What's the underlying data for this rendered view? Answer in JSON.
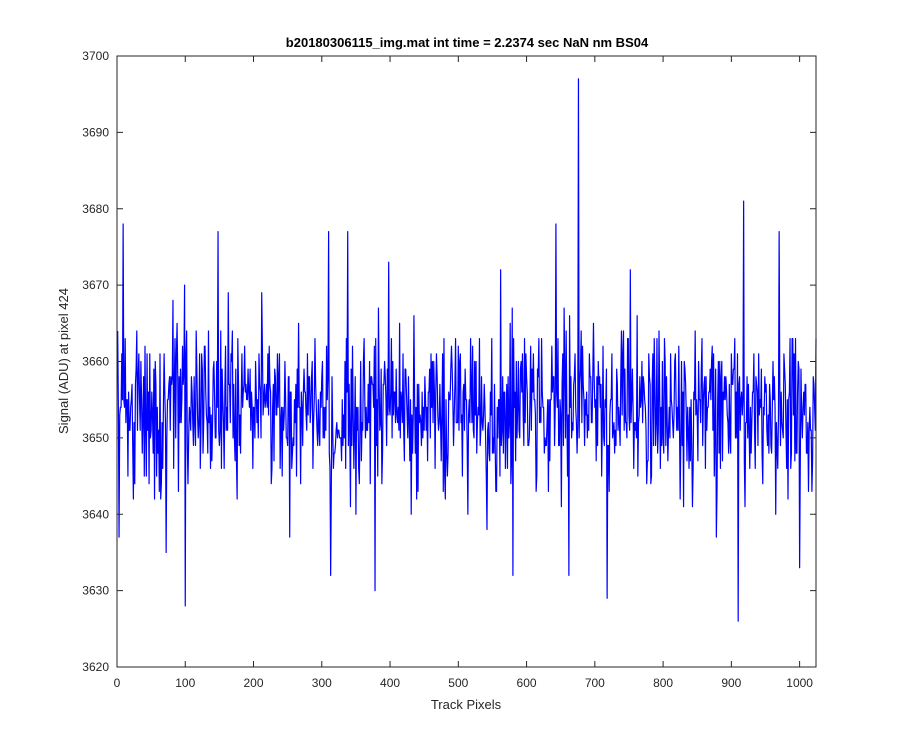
{
  "chart_data": {
    "type": "line",
    "title": "b20180306115_img.mat int time = 2.2374 sec  NaN nm BS04",
    "xlabel": "Track Pixels",
    "ylabel": "Signal (ADU) at pixel 424",
    "xlim": [
      0,
      1024
    ],
    "ylim": [
      3620,
      3700
    ],
    "xticks": [
      "0",
      "100",
      "200",
      "300",
      "400",
      "500",
      "600",
      "700",
      "800",
      "900",
      "1000"
    ],
    "yticks": [
      "3620",
      "3630",
      "3640",
      "3650",
      "3660",
      "3670",
      "3680",
      "3690",
      "3700"
    ],
    "grid": false,
    "box": true,
    "line_color": "#0000ff",
    "series": [
      {
        "mean": 3654,
        "n_points": 1024,
        "x_start": 1,
        "x_end": 1024,
        "peaks": [
          {
            "x": 3,
            "y": 3637
          },
          {
            "x": 9,
            "y": 3678
          },
          {
            "x": 72,
            "y": 3635
          },
          {
            "x": 100,
            "y": 3628
          },
          {
            "x": 148,
            "y": 3677
          },
          {
            "x": 310,
            "y": 3677
          },
          {
            "x": 313,
            "y": 3632
          },
          {
            "x": 338,
            "y": 3677
          },
          {
            "x": 378,
            "y": 3630
          },
          {
            "x": 398,
            "y": 3673
          },
          {
            "x": 580,
            "y": 3632
          },
          {
            "x": 643,
            "y": 3678
          },
          {
            "x": 662,
            "y": 3632
          },
          {
            "x": 676,
            "y": 3697
          },
          {
            "x": 718,
            "y": 3629
          },
          {
            "x": 910,
            "y": 3626
          },
          {
            "x": 918,
            "y": 3681
          },
          {
            "x": 970,
            "y": 3677
          },
          {
            "x": 1000,
            "y": 3633
          }
        ]
      }
    ]
  }
}
